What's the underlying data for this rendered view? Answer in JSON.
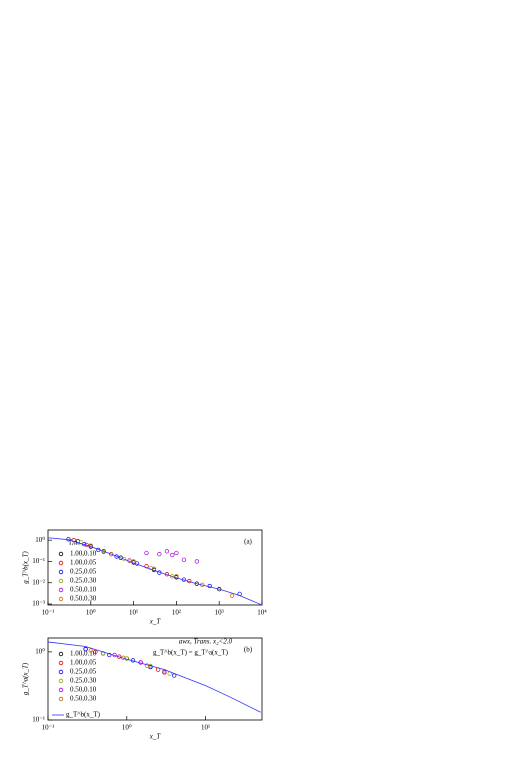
{
  "chart_data": [
    {
      "type": "scatter",
      "panel_label": "(a)",
      "xlabel": "x_T",
      "ylabel": "g_T^b(x_T)",
      "log_x": true,
      "log_y": true,
      "legend_title": "T,αₛ",
      "xlim": [
        0.1,
        10000
      ],
      "ylim": [
        0.0009,
        3
      ],
      "xticks": [
        {
          "value": 0.1,
          "label": "10⁻¹"
        },
        {
          "value": 1,
          "label": "10⁰"
        },
        {
          "value": 10,
          "label": "10¹"
        },
        {
          "value": 100,
          "label": "10²"
        },
        {
          "value": 1000,
          "label": "10³"
        },
        {
          "value": 10000,
          "label": "10⁴"
        }
      ],
      "yticks": [
        {
          "value": 1,
          "label": "10⁰"
        },
        {
          "value": 0.1,
          "label": "10⁻¹"
        },
        {
          "value": 0.01,
          "label": "10⁻²"
        },
        {
          "value": 0.001,
          "label": "10⁻³"
        }
      ],
      "series": [
        {
          "name": "1.00,0.10",
          "color": "#000000",
          "x": [
            0.5,
            1,
            2,
            5,
            10,
            30,
            100,
            300,
            1000
          ],
          "values": [
            0.9,
            0.5,
            0.3,
            0.15,
            0.09,
            0.04,
            0.018,
            0.009,
            0.005
          ]
        },
        {
          "name": "1.00,0.05",
          "color": "#e00000",
          "x": [
            0.4,
            0.8,
            3,
            8,
            20,
            60,
            200
          ],
          "values": [
            1.0,
            0.6,
            0.22,
            0.11,
            0.06,
            0.025,
            0.012
          ]
        },
        {
          "name": "0.25,0.05",
          "color": "#0000ee",
          "x": [
            0.3,
            0.7,
            1.5,
            4,
            12,
            40,
            150,
            600,
            3000
          ],
          "values": [
            1.1,
            0.65,
            0.35,
            0.17,
            0.08,
            0.03,
            0.014,
            0.007,
            0.003
          ]
        },
        {
          "name": "0.25,0.30",
          "color": "#88aa00",
          "x": [
            0.6,
            2,
            6,
            25,
            80
          ],
          "values": [
            0.8,
            0.28,
            0.13,
            0.05,
            0.02
          ]
        },
        {
          "name": "0.50,0.10",
          "color": "#aa00ee",
          "x": [
            20,
            40,
            60,
            80,
            100,
            150,
            300
          ],
          "values": [
            0.25,
            0.22,
            0.3,
            0.2,
            0.25,
            0.12,
            0.1
          ]
        },
        {
          "name": "0.50,0.30",
          "color": "#cc6600",
          "x": [
            1,
            3,
            10,
            30,
            100,
            400,
            2000
          ],
          "values": [
            0.55,
            0.22,
            0.1,
            0.045,
            0.02,
            0.008,
            0.0025
          ]
        },
        {
          "kind": "line",
          "color": "#3333ff",
          "x": [
            0.1,
            0.3,
            1,
            3,
            10,
            30,
            100,
            300,
            1000,
            3000,
            10000
          ],
          "values": [
            1.3,
            1.05,
            0.5,
            0.22,
            0.085,
            0.038,
            0.017,
            0.009,
            0.005,
            0.0025,
            0.0009
          ]
        }
      ]
    },
    {
      "type": "scatter",
      "panel_label": "(b)",
      "xlabel": "x_T",
      "ylabel": "g_T^a(x_T)",
      "log_x": true,
      "log_y": true,
      "annotations": [
        "awx, Trans. x₂<2.0",
        "g_T^b(x_T) = g_T^a(x_T)"
      ],
      "xlim": [
        0.1,
        52
      ],
      "ylim": [
        0.1,
        1.6
      ],
      "xticks": [
        {
          "value": 0.1,
          "label": "10⁻¹"
        },
        {
          "value": 1,
          "label": "10⁰"
        },
        {
          "value": 10,
          "label": "10¹"
        }
      ],
      "yticks": [
        {
          "value": 1,
          "label": "10⁰"
        },
        {
          "value": 0.1,
          "label": "10⁻¹"
        }
      ],
      "series": [
        {
          "name": "1.00,0.10",
          "color": "#000000",
          "x": [
            0.3,
            0.5,
            1,
            2,
            3
          ],
          "values": [
            1.1,
            0.95,
            0.8,
            0.6,
            0.5
          ]
        },
        {
          "name": "1.00,0.05",
          "color": "#e00000",
          "x": [
            0.4,
            0.8,
            1.5,
            2.5
          ],
          "values": [
            1.0,
            0.85,
            0.7,
            0.55
          ]
        },
        {
          "name": "0.25,0.05",
          "color": "#0000ee",
          "x": [
            0.3,
            0.6,
            1.2,
            2,
            4
          ],
          "values": [
            1.1,
            0.9,
            0.75,
            0.6,
            0.45
          ]
        },
        {
          "name": "0.25,0.30",
          "color": "#88aa00",
          "x": [
            0.5,
            1,
            2,
            3.5
          ],
          "values": [
            0.95,
            0.8,
            0.62,
            0.48
          ]
        },
        {
          "name": "0.50,0.10",
          "color": "#aa00ee",
          "x": [
            0.7,
            1.5,
            3
          ],
          "values": [
            0.9,
            0.7,
            0.5
          ]
        },
        {
          "name": "0.50,0.30",
          "color": "#cc6600",
          "x": [
            0.35,
            0.9,
            1.8,
            3
          ],
          "values": [
            1.05,
            0.82,
            0.63,
            0.52
          ]
        },
        {
          "name": "g_T^b(x_T)",
          "kind": "line",
          "color": "#3333ff",
          "x": [
            0.1,
            0.3,
            1,
            3,
            10,
            20,
            50
          ],
          "values": [
            1.4,
            1.2,
            0.78,
            0.55,
            0.32,
            0.22,
            0.13
          ]
        }
      ]
    }
  ]
}
